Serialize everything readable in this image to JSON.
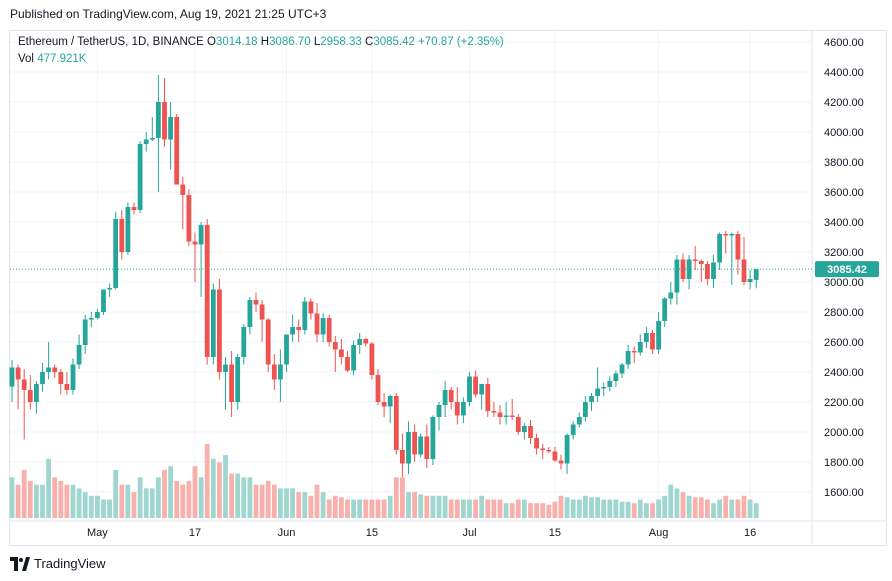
{
  "header": {
    "published": "Published on TradingView.com, Aug 19, 2021 21:25 UTC+3"
  },
  "legend": {
    "symbol": "Ethereum / TetherUS, 1D, BINANCE",
    "open_label": "O",
    "open": "3014.18",
    "high_label": "H",
    "high": "3086.70",
    "low_label": "L",
    "low": "2958.33",
    "close_label": "C",
    "close": "3085.42",
    "change": "+70.87 (+2.35%)",
    "vol_label": "Vol",
    "vol": "477.921K"
  },
  "footer": {
    "brand": "TradingView"
  },
  "colors": {
    "up": "#26a69a",
    "down": "#ef5350",
    "vol_up": "#a0d6d0",
    "vol_down": "#f7b0ac",
    "grid": "#f0f3fa",
    "last_price": "#26a69a"
  },
  "chart_data": {
    "type": "candlestick",
    "title": "Ethereum / TetherUS, 1D, BINANCE",
    "ylim": [
      1400,
      4700
    ],
    "y_ticks": [
      "4600.00",
      "4400.00",
      "4200.00",
      "4000.00",
      "3800.00",
      "3600.00",
      "3400.00",
      "3200.00",
      "3000.00",
      "2800.00",
      "2600.00",
      "2400.00",
      "2200.00",
      "2000.00",
      "1800.00",
      "1600.00"
    ],
    "x_ticks": [
      {
        "label": "May",
        "index": 14
      },
      {
        "label": "17",
        "index": 30
      },
      {
        "label": "Jun",
        "index": 45
      },
      {
        "label": "15",
        "index": 59
      },
      {
        "label": "Jul",
        "index": 75
      },
      {
        "label": "15",
        "index": 89
      },
      {
        "label": "Aug",
        "index": 106
      },
      {
        "label": "16",
        "index": 121
      }
    ],
    "last_price": "3085.42",
    "last_price_value": 3085.42,
    "candles_ohlc": [
      [
        2303,
        2480,
        2200,
        2430
      ],
      [
        2430,
        2450,
        2150,
        2350
      ],
      [
        2350,
        2420,
        1950,
        2280
      ],
      [
        2280,
        2380,
        2150,
        2200
      ],
      [
        2200,
        2340,
        2120,
        2320
      ],
      [
        2320,
        2460,
        2270,
        2400
      ],
      [
        2400,
        2600,
        2350,
        2430
      ],
      [
        2430,
        2450,
        2360,
        2400
      ],
      [
        2400,
        2420,
        2250,
        2320
      ],
      [
        2320,
        2400,
        2250,
        2280
      ],
      [
        2280,
        2490,
        2250,
        2450
      ],
      [
        2450,
        2650,
        2420,
        2580
      ],
      [
        2580,
        2780,
        2520,
        2750
      ],
      [
        2750,
        2800,
        2700,
        2760
      ],
      [
        2760,
        2820,
        2750,
        2800
      ],
      [
        2800,
        2950,
        2780,
        2950
      ],
      [
        2950,
        2990,
        2900,
        2960
      ],
      [
        2960,
        3470,
        2950,
        3420
      ],
      [
        3420,
        3480,
        3150,
        3200
      ],
      [
        3200,
        3530,
        3180,
        3500
      ],
      [
        3500,
        3530,
        3450,
        3480
      ],
      [
        3480,
        3940,
        3460,
        3920
      ],
      [
        3920,
        4000,
        3870,
        3950
      ],
      [
        3950,
        4100,
        3940,
        3960
      ],
      [
        3960,
        4380,
        3600,
        4200
      ],
      [
        4200,
        4360,
        3900,
        3950
      ],
      [
        3950,
        4200,
        3750,
        4100
      ],
      [
        4100,
        4120,
        3650,
        3650
      ],
      [
        3650,
        3700,
        3350,
        3580
      ],
      [
        3580,
        3620,
        3240,
        3270
      ],
      [
        3270,
        3330,
        3000,
        3250
      ],
      [
        3250,
        3400,
        2900,
        3380
      ],
      [
        3380,
        3420,
        2450,
        2500
      ],
      [
        2500,
        2990,
        2450,
        2950
      ],
      [
        2950,
        3020,
        2350,
        2400
      ],
      [
        2400,
        2500,
        2150,
        2450
      ],
      [
        2450,
        2540,
        2100,
        2200
      ],
      [
        2200,
        2520,
        2150,
        2500
      ],
      [
        2500,
        2720,
        2450,
        2700
      ],
      [
        2700,
        2900,
        2650,
        2880
      ],
      [
        2880,
        2930,
        2800,
        2850
      ],
      [
        2850,
        2880,
        2600,
        2750
      ],
      [
        2750,
        2760,
        2400,
        2450
      ],
      [
        2450,
        2520,
        2280,
        2350
      ],
      [
        2350,
        2550,
        2200,
        2450
      ],
      [
        2450,
        2650,
        2400,
        2650
      ],
      [
        2650,
        2780,
        2600,
        2700
      ],
      [
        2700,
        2750,
        2600,
        2680
      ],
      [
        2680,
        2900,
        2650,
        2870
      ],
      [
        2870,
        2890,
        2750,
        2790
      ],
      [
        2790,
        2860,
        2600,
        2650
      ],
      [
        2650,
        2790,
        2600,
        2760
      ],
      [
        2760,
        2780,
        2570,
        2600
      ],
      [
        2600,
        2640,
        2400,
        2550
      ],
      [
        2550,
        2620,
        2450,
        2500
      ],
      [
        2500,
        2540,
        2400,
        2410
      ],
      [
        2410,
        2610,
        2380,
        2580
      ],
      [
        2580,
        2660,
        2520,
        2620
      ],
      [
        2620,
        2630,
        2570,
        2590
      ],
      [
        2590,
        2600,
        2350,
        2380
      ],
      [
        2380,
        2420,
        2180,
        2200
      ],
      [
        2200,
        2260,
        2100,
        2170
      ],
      [
        2170,
        2250,
        2060,
        2240
      ],
      [
        2240,
        2260,
        1850,
        1880
      ],
      [
        1880,
        1990,
        1700,
        1790
      ],
      [
        1790,
        2070,
        1720,
        2000
      ],
      [
        2000,
        2050,
        1800,
        1850
      ],
      [
        1850,
        1990,
        1830,
        1970
      ],
      [
        1970,
        2050,
        1760,
        1820
      ],
      [
        1820,
        2110,
        1780,
        2100
      ],
      [
        2100,
        2200,
        2010,
        2180
      ],
      [
        2180,
        2340,
        2100,
        2280
      ],
      [
        2280,
        2300,
        2150,
        2200
      ],
      [
        2200,
        2300,
        2050,
        2110
      ],
      [
        2110,
        2230,
        2060,
        2200
      ],
      [
        2200,
        2400,
        2170,
        2370
      ],
      [
        2370,
        2410,
        2230,
        2250
      ],
      [
        2250,
        2320,
        2150,
        2320
      ],
      [
        2320,
        2360,
        2100,
        2140
      ],
      [
        2140,
        2200,
        2100,
        2130
      ],
      [
        2130,
        2180,
        2050,
        2100
      ],
      [
        2100,
        2200,
        2050,
        2110
      ],
      [
        2110,
        2220,
        2080,
        2100
      ],
      [
        2100,
        2120,
        1980,
        2000
      ],
      [
        2000,
        2060,
        1950,
        2040
      ],
      [
        2040,
        2080,
        1920,
        1960
      ],
      [
        1960,
        1990,
        1850,
        1890
      ],
      [
        1890,
        1920,
        1820,
        1880
      ],
      [
        1880,
        1900,
        1860,
        1870
      ],
      [
        1870,
        1900,
        1800,
        1810
      ],
      [
        1810,
        1850,
        1750,
        1790
      ],
      [
        1790,
        1990,
        1720,
        1980
      ],
      [
        1980,
        2070,
        1950,
        2050
      ],
      [
        2050,
        2130,
        2030,
        2100
      ],
      [
        2100,
        2240,
        2070,
        2200
      ],
      [
        2200,
        2260,
        2140,
        2240
      ],
      [
        2240,
        2430,
        2200,
        2290
      ],
      [
        2290,
        2330,
        2240,
        2300
      ],
      [
        2300,
        2370,
        2270,
        2340
      ],
      [
        2340,
        2410,
        2300,
        2390
      ],
      [
        2390,
        2460,
        2360,
        2450
      ],
      [
        2450,
        2580,
        2420,
        2540
      ],
      [
        2540,
        2570,
        2460,
        2530
      ],
      [
        2530,
        2650,
        2510,
        2600
      ],
      [
        2600,
        2700,
        2560,
        2660
      ],
      [
        2660,
        2680,
        2520,
        2550
      ],
      [
        2550,
        2800,
        2520,
        2740
      ],
      [
        2740,
        2900,
        2700,
        2890
      ],
      [
        2890,
        3000,
        2850,
        2930
      ],
      [
        2930,
        3180,
        2850,
        3150
      ],
      [
        3150,
        3190,
        3000,
        3020
      ],
      [
        3020,
        3180,
        2950,
        3150
      ],
      [
        3150,
        3240,
        3080,
        3140
      ],
      [
        3140,
        3150,
        3000,
        3120
      ],
      [
        3120,
        3140,
        2980,
        3020
      ],
      [
        3020,
        3180,
        2960,
        3130
      ],
      [
        3130,
        3330,
        3080,
        3320
      ],
      [
        3320,
        3340,
        3190,
        3310
      ],
      [
        3310,
        3330,
        2980,
        3320
      ],
      [
        3320,
        3340,
        3050,
        3150
      ],
      [
        3150,
        3300,
        2980,
        3000
      ],
      [
        3000,
        3080,
        2950,
        3020
      ],
      [
        3014.18,
        3086.7,
        2958.33,
        3085.42
      ]
    ],
    "volume_relative": [
      0.55,
      0.45,
      0.65,
      0.5,
      0.45,
      0.45,
      0.8,
      0.55,
      0.5,
      0.45,
      0.45,
      0.4,
      0.35,
      0.3,
      0.3,
      0.25,
      0.25,
      0.65,
      0.45,
      0.45,
      0.35,
      0.55,
      0.4,
      0.4,
      0.55,
      0.65,
      0.7,
      0.5,
      0.45,
      0.5,
      0.7,
      0.55,
      1.0,
      0.8,
      0.75,
      0.85,
      0.6,
      0.6,
      0.55,
      0.55,
      0.45,
      0.45,
      0.5,
      0.45,
      0.4,
      0.4,
      0.4,
      0.35,
      0.35,
      0.3,
      0.45,
      0.35,
      0.25,
      0.3,
      0.28,
      0.25,
      0.25,
      0.25,
      0.25,
      0.25,
      0.25,
      0.25,
      0.3,
      0.55,
      0.55,
      0.35,
      0.35,
      0.32,
      0.3,
      0.3,
      0.3,
      0.3,
      0.25,
      0.25,
      0.25,
      0.25,
      0.25,
      0.3,
      0.25,
      0.25,
      0.25,
      0.2,
      0.2,
      0.25,
      0.25,
      0.2,
      0.2,
      0.2,
      0.18,
      0.22,
      0.3,
      0.28,
      0.25,
      0.25,
      0.3,
      0.28,
      0.28,
      0.25,
      0.25,
      0.25,
      0.22,
      0.22,
      0.2,
      0.25,
      0.2,
      0.2,
      0.25,
      0.3,
      0.45,
      0.4,
      0.35,
      0.3,
      0.28,
      0.28,
      0.25,
      0.2,
      0.25,
      0.3,
      0.25,
      0.25,
      0.3,
      0.25,
      0.2
    ]
  }
}
